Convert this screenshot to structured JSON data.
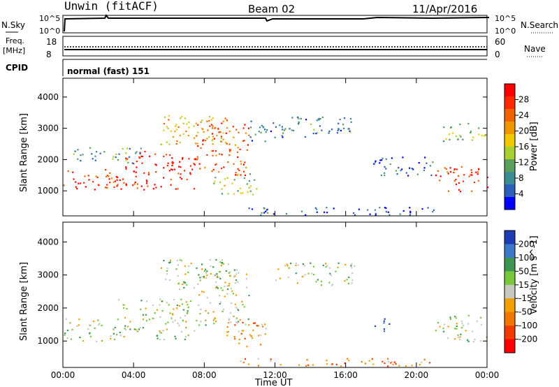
{
  "header": {
    "station": "Unwin (fitACF)",
    "beam": "Beam 02",
    "date": "11/Apr/2016"
  },
  "panels": {
    "nsky": {
      "label": "N.Sky",
      "left_ticks": [
        "10^5",
        "10^0"
      ],
      "right_ticks": [
        "10^5",
        "10^0"
      ],
      "right_label": "N.Search"
    },
    "freq": {
      "label_line1": "Freq.",
      "label_line2": "[MHz]",
      "left_ticks": [
        "18",
        "8"
      ],
      "right_ticks": [
        "60",
        "0"
      ],
      "right_label": "Nave"
    },
    "cpid": {
      "label": "CPID",
      "value": "normal (fast) 151"
    }
  },
  "chart_data": [
    {
      "type": "heatmap",
      "name": "power",
      "xlabel": "",
      "ylabel": "Slant Range [km]",
      "x_ticks": [
        "00:00",
        "04:00",
        "08:00",
        "12:00",
        "16:00",
        "20:00",
        "00:00"
      ],
      "y_ticks": [
        1000,
        2000,
        3000,
        4000
      ],
      "ylim": [
        200,
        4600
      ],
      "colorbar": {
        "label": "Power [dB]",
        "ticks": [
          "4",
          "8",
          "12",
          "16",
          "20",
          "24",
          "28"
        ],
        "colors": [
          "#0000ff",
          "#2b5fb8",
          "#3c8c96",
          "#5aa05a",
          "#a8d030",
          "#f0c800",
          "#f09600",
          "#f06400",
          "#ff2800",
          "#ff0000"
        ]
      },
      "regions": [
        {
          "t0": 0.0,
          "t1": 3.0,
          "r0": 1000,
          "r1": 1700,
          "level": 0.85
        },
        {
          "t0": 3.0,
          "t1": 7.5,
          "r0": 1050,
          "r1": 2300,
          "level": 0.9
        },
        {
          "t0": 7.5,
          "t1": 10.5,
          "r0": 1500,
          "r1": 3200,
          "level": 0.8
        },
        {
          "t0": 5.5,
          "t1": 9.5,
          "r0": 2500,
          "r1": 3500,
          "level": 0.6
        },
        {
          "t0": 0.5,
          "t1": 4.5,
          "r0": 1900,
          "r1": 2400,
          "level": 0.3
        },
        {
          "t0": 10.5,
          "t1": 12.0,
          "r0": 2600,
          "r1": 3300,
          "level": 0.2
        },
        {
          "t0": 12.0,
          "t1": 16.5,
          "r0": 2700,
          "r1": 3400,
          "level": 0.25
        },
        {
          "t0": 8.5,
          "t1": 11.0,
          "r0": 900,
          "r1": 1600,
          "level": 0.45
        },
        {
          "t0": 17.5,
          "t1": 21.0,
          "r0": 1500,
          "r1": 2100,
          "level": 0.15
        },
        {
          "t0": 21.0,
          "t1": 24.0,
          "r0": 1000,
          "r1": 1800,
          "level": 0.85
        },
        {
          "t0": 21.5,
          "t1": 24.0,
          "r0": 2600,
          "r1": 3200,
          "level": 0.4
        },
        {
          "t0": 10.0,
          "t1": 21.0,
          "r0": 250,
          "r1": 500,
          "level": 0.15
        }
      ]
    },
    {
      "type": "heatmap",
      "name": "velocity",
      "xlabel": "Time UT",
      "ylabel": "Slant Range [km]",
      "x_ticks": [
        "00:00",
        "04:00",
        "08:00",
        "12:00",
        "16:00",
        "20:00",
        "00:00"
      ],
      "y_ticks": [
        1000,
        2000,
        3000,
        4000
      ],
      "ylim": [
        200,
        4600
      ],
      "colorbar": {
        "label": "Velocity [m s^-1]",
        "ticks": [
          "200",
          "100",
          "50",
          "15",
          "-15",
          "-50",
          "-100",
          "-200"
        ],
        "colors": [
          "#1e3cb4",
          "#3c78c8",
          "#3c9650",
          "#78c83c",
          "#c8c8c0",
          "#f0a000",
          "#f07800",
          "#f03c00",
          "#ff0000"
        ]
      },
      "regions": [
        {
          "t0": 0.0,
          "t1": 3.0,
          "r0": 1000,
          "r1": 1700,
          "level": 0.45
        },
        {
          "t0": 3.0,
          "t1": 7.5,
          "r0": 1050,
          "r1": 2300,
          "level": 0.45
        },
        {
          "t0": 7.5,
          "t1": 10.5,
          "r0": 1500,
          "r1": 3200,
          "level": 0.45
        },
        {
          "t0": 5.5,
          "t1": 9.5,
          "r0": 2500,
          "r1": 3500,
          "level": 0.45
        },
        {
          "t0": 9.0,
          "t1": 11.5,
          "r0": 800,
          "r1": 1600,
          "level": 0.7
        },
        {
          "t0": 12.0,
          "t1": 16.5,
          "r0": 2700,
          "r1": 3400,
          "level": 0.45
        },
        {
          "t0": 17.5,
          "t1": 18.5,
          "r0": 1300,
          "r1": 1700,
          "level": 0.05
        },
        {
          "t0": 21.0,
          "t1": 24.0,
          "r0": 1000,
          "r1": 1800,
          "level": 0.45
        },
        {
          "t0": 10.0,
          "t1": 21.0,
          "r0": 250,
          "r1": 500,
          "level": 0.7
        }
      ]
    }
  ]
}
